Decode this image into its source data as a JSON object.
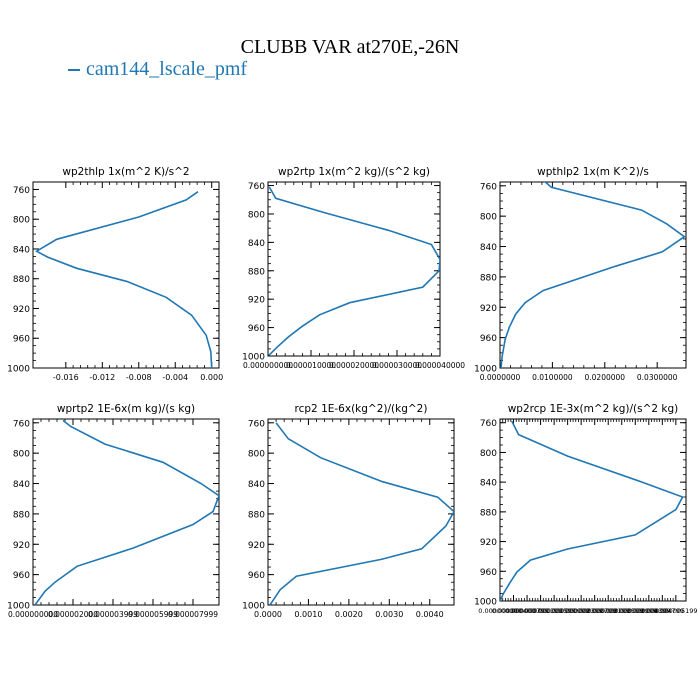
{
  "title": "CLUBB VAR at270E,-26N",
  "legend": {
    "label": "cam144_lscale_pmf",
    "color": "#1f77b4"
  },
  "chart_data": [
    {
      "type": "line",
      "title": "wp2thlp   1x(m^2 K)/s^2",
      "ylim": [
        1000,
        750
      ],
      "yticks": [
        760,
        800,
        840,
        880,
        920,
        960,
        1000
      ],
      "xlim": [
        -0.0196,
        0.0008
      ],
      "xticks": [
        -0.016,
        -0.012,
        -0.008,
        -0.004,
        0.0
      ],
      "xticklabels": [
        "-0.016",
        "-0.012",
        "-0.008",
        "-0.004",
        "0.000"
      ],
      "series": [
        {
          "p": [
            763,
            774,
            797,
            827,
            843,
            851,
            866,
            884,
            905,
            929,
            956,
            978,
            1000
          ],
          "x": [
            -0.0015,
            -0.0028,
            -0.008,
            -0.017,
            -0.0192,
            -0.018,
            -0.0148,
            -0.0092,
            -0.005,
            -0.0022,
            -0.0006,
            -0.0001,
            0.0
          ]
        }
      ]
    },
    {
      "type": "line",
      "title": "wp2rtp   1x(m^2 kg)/(s^2 kg)",
      "ylim": [
        1000,
        755
      ],
      "yticks": [
        760,
        800,
        840,
        880,
        920,
        960,
        1000
      ],
      "xlim": [
        0.0,
        4e-05
      ],
      "xticks": [
        0.0,
        1e-05,
        2e-05,
        3e-05,
        4e-05
      ],
      "xticklabels": [
        "0.000000000",
        "0.000010000",
        "0.000020000",
        "0.000030000",
        "0.000040000"
      ],
      "series": [
        {
          "p": [
            762,
            778,
            798,
            823,
            843,
            864,
            880,
            903,
            925,
            942,
            958,
            973,
            987,
            999
          ],
          "x": [
            3e-07,
            1.8e-06,
            1.3e-05,
            2.8e-05,
            3.8e-05,
            4e-05,
            3.98e-05,
            3.6e-05,
            1.9e-05,
            1.2e-05,
            8e-06,
            4.8e-06,
            2.2e-06,
            2e-07
          ]
        }
      ]
    },
    {
      "type": "line",
      "title": "wpthlp2   1x(m K^2)/s",
      "ylim": [
        1000,
        755
      ],
      "yticks": [
        760,
        800,
        840,
        880,
        920,
        960,
        1000
      ],
      "xlim": [
        0.0,
        0.0355
      ],
      "xticks": [
        0.0,
        0.01,
        0.02,
        0.03
      ],
      "xticklabels": [
        "0.0000000",
        "0.0100000",
        "0.0200000",
        "0.0300000"
      ],
      "series": [
        {
          "p": [
            754,
            762,
            792,
            810,
            827,
            847,
            866,
            898,
            914,
            929,
            946,
            962,
            985,
            1000
          ],
          "x": [
            0.0085,
            0.0098,
            0.027,
            0.0318,
            0.0352,
            0.031,
            0.022,
            0.0082,
            0.0048,
            0.003,
            0.0018,
            0.001,
            0.0004,
            0.0002
          ]
        }
      ]
    },
    {
      "type": "line",
      "title": "wprtp2   1E-6x(m kg)/(s kg)",
      "ylim": [
        1000,
        755
      ],
      "yticks": [
        760,
        800,
        840,
        880,
        920,
        960,
        1000
      ],
      "xlim": [
        0.0,
        9.3e-06
      ],
      "xticks": [
        0.0,
        2e-06,
        4e-06,
        6e-06,
        8e-06
      ],
      "xticklabels": [
        "0.000000000",
        "0.000002000",
        "0.000003999",
        "0.000005999",
        "0.000007999"
      ],
      "series": [
        {
          "p": [
            757,
            765,
            788,
            812,
            840,
            856,
            877,
            894,
            925,
            949,
            970,
            982,
            1000
          ],
          "x": [
            1.5e-06,
            1.9e-06,
            3.6e-06,
            6.5e-06,
            8.4e-06,
            9.3e-06,
            9e-06,
            8e-06,
            5e-06,
            2.2e-06,
            1.1e-06,
            6e-07,
            1e-07
          ]
        }
      ]
    },
    {
      "type": "line",
      "title": "rcp2   1E-6x(kg^2)/(kg^2)",
      "ylim": [
        1000,
        755
      ],
      "yticks": [
        760,
        800,
        840,
        880,
        920,
        960,
        1000
      ],
      "xlim": [
        0.0,
        0.0046
      ],
      "xticks": [
        0.0,
        0.001,
        0.002,
        0.003,
        0.004
      ],
      "xticklabels": [
        "0.0000",
        "0.0010",
        "0.0020",
        "0.0030",
        "0.0040"
      ],
      "series": [
        {
          "p": [
            760,
            781,
            806,
            837,
            858,
            877,
            896,
            926,
            940,
            962,
            980,
            1000
          ],
          "x": [
            0.0002,
            0.0005,
            0.0013,
            0.0028,
            0.0042,
            0.0046,
            0.0044,
            0.0038,
            0.0028,
            0.0007,
            0.0003,
            5e-05
          ]
        }
      ]
    },
    {
      "type": "line",
      "title": "wp2rcp   1E-3x(m^2 kg)/(s^2 kg)",
      "ylim": [
        1000,
        755
      ],
      "yticks": [
        760,
        800,
        840,
        880,
        920,
        960,
        1000
      ],
      "xlim": [
        0.0,
        5.5e-06
      ],
      "xticks": [
        0.0,
        4e-07,
        8e-07,
        1.2e-06,
        1.6e-06,
        2e-06,
        2.4e-06,
        2.8e-06,
        3.2e-06,
        3.6e-06,
        4e-06,
        4.4e-06,
        4.8e-06,
        5.2e-06
      ],
      "xticklabels": [
        "0.000000000",
        "0.000000400",
        "0.000000799",
        "0.000001199",
        "0.000001599",
        "0.000001999",
        "0.000002399",
        "0.000002799",
        "0.000003199",
        "0.000003599",
        "0.000003999",
        "0.000004399",
        "0.000004799",
        "0.000005199"
      ],
      "series": [
        {
          "p": [
            758,
            776,
            805,
            840,
            860,
            877,
            911,
            930,
            945,
            961,
            975,
            990,
            1000
          ],
          "x": [
            3.5e-07,
            5.5e-07,
            2e-06,
            4.2e-06,
            5.4e-06,
            5.2e-06,
            4e-06,
            2e-06,
            9e-07,
            5e-07,
            3e-07,
            1e-07,
            0.0
          ]
        }
      ]
    }
  ]
}
